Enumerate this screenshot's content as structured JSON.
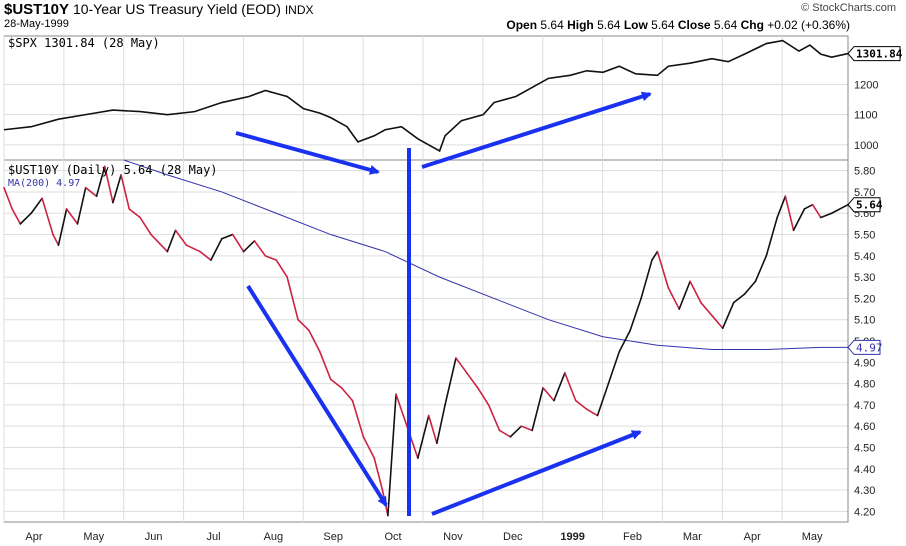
{
  "header": {
    "symbol": "$UST10Y",
    "description": "10-Year US Treasury Yield (EOD)",
    "exchange": "INDX",
    "date": "28-May-1999",
    "credit": "© StockCharts.com",
    "open_label": "Open",
    "open": "5.64",
    "high_label": "High",
    "high": "5.64",
    "low_label": "Low",
    "low": "5.64",
    "close_label": "Close",
    "close": "5.64",
    "chg_label": "Chg",
    "chg": "+0.02 (+0.36%)"
  },
  "top_panel": {
    "legend": "$SPX 1301.84 (28 May)",
    "last_tag": "1301.84"
  },
  "bottom_panel": {
    "legend_price": "$UST10Y (Daily) 5.64 (28 May)",
    "legend_ma": "MA(200) 4.97",
    "last_tag": "5.64",
    "ma_tag": "4.97"
  },
  "colors": {
    "spx": "#111111",
    "yield_up": "#111111",
    "yield_down": "#cc2244",
    "ma": "#3333aa",
    "arrow": "#1a32f0",
    "grid": "#dddddd",
    "tag_border": "#3333aa"
  },
  "chart_data": [
    {
      "type": "line",
      "series": [
        {
          "name": "$SPX",
          "points": [
            [
              0,
              1050
            ],
            [
              0.5,
              1060
            ],
            [
              1,
              1085
            ],
            [
              1.5,
              1100
            ],
            [
              2,
              1115
            ],
            [
              2.5,
              1110
            ],
            [
              3,
              1100
            ],
            [
              3.5,
              1110
            ],
            [
              4,
              1140
            ],
            [
              4.5,
              1160
            ],
            [
              4.8,
              1180
            ],
            [
              5.2,
              1160
            ],
            [
              5.5,
              1120
            ],
            [
              5.8,
              1105
            ],
            [
              6,
              1090
            ],
            [
              6.3,
              1060
            ],
            [
              6.5,
              1010
            ],
            [
              6.8,
              1030
            ],
            [
              7,
              1050
            ],
            [
              7.3,
              1060
            ],
            [
              7.6,
              1020
            ],
            [
              8,
              980
            ],
            [
              8.1,
              1030
            ],
            [
              8.4,
              1080
            ],
            [
              8.8,
              1100
            ],
            [
              9,
              1140
            ],
            [
              9.4,
              1160
            ],
            [
              9.7,
              1190
            ],
            [
              10,
              1220
            ],
            [
              10.4,
              1230
            ],
            [
              10.7,
              1245
            ],
            [
              11,
              1240
            ],
            [
              11.3,
              1260
            ],
            [
              11.6,
              1235
            ],
            [
              12,
              1230
            ],
            [
              12.2,
              1260
            ],
            [
              12.6,
              1270
            ],
            [
              13,
              1285
            ],
            [
              13.3,
              1275
            ],
            [
              13.6,
              1300
            ],
            [
              14,
              1335
            ],
            [
              14.3,
              1345
            ],
            [
              14.6,
              1310
            ],
            [
              14.8,
              1330
            ],
            [
              15,
              1300
            ],
            [
              15.2,
              1290
            ],
            [
              15.5,
              1301.84
            ]
          ]
        }
      ],
      "ylim": [
        950,
        1360
      ],
      "y_ticks": [
        1000,
        1100,
        1200
      ],
      "legend_position": "top-left",
      "grid": true
    },
    {
      "type": "line",
      "series": [
        {
          "name": "$UST10Y",
          "points": [
            [
              0,
              5.72
            ],
            [
              0.15,
              5.62
            ],
            [
              0.3,
              5.55
            ],
            [
              0.5,
              5.6
            ],
            [
              0.7,
              5.67
            ],
            [
              0.9,
              5.5
            ],
            [
              1.0,
              5.45
            ],
            [
              1.15,
              5.62
            ],
            [
              1.35,
              5.55
            ],
            [
              1.5,
              5.72
            ],
            [
              1.7,
              5.68
            ],
            [
              1.85,
              5.82
            ],
            [
              2.0,
              5.65
            ],
            [
              2.15,
              5.78
            ],
            [
              2.3,
              5.62
            ],
            [
              2.5,
              5.58
            ],
            [
              2.7,
              5.5
            ],
            [
              3.0,
              5.42
            ],
            [
              3.15,
              5.52
            ],
            [
              3.35,
              5.45
            ],
            [
              3.6,
              5.42
            ],
            [
              3.8,
              5.38
            ],
            [
              4.0,
              5.48
            ],
            [
              4.2,
              5.5
            ],
            [
              4.4,
              5.42
            ],
            [
              4.6,
              5.47
            ],
            [
              4.8,
              5.4
            ],
            [
              5.0,
              5.38
            ],
            [
              5.2,
              5.3
            ],
            [
              5.4,
              5.1
            ],
            [
              5.6,
              5.05
            ],
            [
              5.8,
              4.95
            ],
            [
              6.0,
              4.82
            ],
            [
              6.2,
              4.78
            ],
            [
              6.4,
              4.72
            ],
            [
              6.6,
              4.55
            ],
            [
              6.8,
              4.45
            ],
            [
              6.95,
              4.3
            ],
            [
              7.05,
              4.18
            ],
            [
              7.2,
              4.75
            ],
            [
              7.4,
              4.6
            ],
            [
              7.6,
              4.45
            ],
            [
              7.7,
              4.55
            ],
            [
              7.8,
              4.65
            ],
            [
              7.95,
              4.52
            ],
            [
              8.1,
              4.7
            ],
            [
              8.3,
              4.92
            ],
            [
              8.5,
              4.85
            ],
            [
              8.7,
              4.78
            ],
            [
              8.9,
              4.7
            ],
            [
              9.1,
              4.58
            ],
            [
              9.3,
              4.55
            ],
            [
              9.5,
              4.6
            ],
            [
              9.7,
              4.58
            ],
            [
              9.9,
              4.78
            ],
            [
              10.1,
              4.72
            ],
            [
              10.3,
              4.85
            ],
            [
              10.5,
              4.72
            ],
            [
              10.7,
              4.68
            ],
            [
              10.9,
              4.65
            ],
            [
              11.1,
              4.8
            ],
            [
              11.3,
              4.95
            ],
            [
              11.5,
              5.05
            ],
            [
              11.7,
              5.2
            ],
            [
              11.9,
              5.38
            ],
            [
              12.0,
              5.42
            ],
            [
              12.2,
              5.25
            ],
            [
              12.4,
              5.15
            ],
            [
              12.6,
              5.28
            ],
            [
              12.8,
              5.18
            ],
            [
              13.0,
              5.12
            ],
            [
              13.2,
              5.06
            ],
            [
              13.4,
              5.18
            ],
            [
              13.6,
              5.22
            ],
            [
              13.8,
              5.28
            ],
            [
              14.0,
              5.4
            ],
            [
              14.2,
              5.58
            ],
            [
              14.35,
              5.68
            ],
            [
              14.5,
              5.52
            ],
            [
              14.7,
              5.62
            ],
            [
              14.85,
              5.64
            ],
            [
              15.0,
              5.58
            ],
            [
              15.2,
              5.6
            ],
            [
              15.5,
              5.64
            ]
          ]
        },
        {
          "name": "MA(200)",
          "points": [
            [
              2.2,
              5.85
            ],
            [
              3,
              5.78
            ],
            [
              4,
              5.7
            ],
            [
              5,
              5.6
            ],
            [
              6,
              5.5
            ],
            [
              7,
              5.42
            ],
            [
              8,
              5.3
            ],
            [
              9,
              5.2
            ],
            [
              10,
              5.1
            ],
            [
              11,
              5.02
            ],
            [
              12,
              4.98
            ],
            [
              13,
              4.96
            ],
            [
              14,
              4.96
            ],
            [
              15,
              4.97
            ],
            [
              15.5,
              4.97
            ]
          ]
        }
      ],
      "x_ticks": [
        "Apr",
        "May",
        "Jun",
        "Jul",
        "Aug",
        "Sep",
        "Oct",
        "Nov",
        "Dec",
        "1999",
        "Feb",
        "Mar",
        "Apr",
        "May"
      ],
      "ylim": [
        4.15,
        5.85
      ],
      "y_ticks": [
        "4.20",
        "4.30",
        "4.40",
        "4.50",
        "4.60",
        "4.70",
        "4.80",
        "4.90",
        "5.00",
        "5.10",
        "5.20",
        "5.30",
        "5.40",
        "5.50",
        "5.60",
        "5.70",
        "5.80"
      ],
      "legend_position": "top-left",
      "grid": true
    }
  ]
}
